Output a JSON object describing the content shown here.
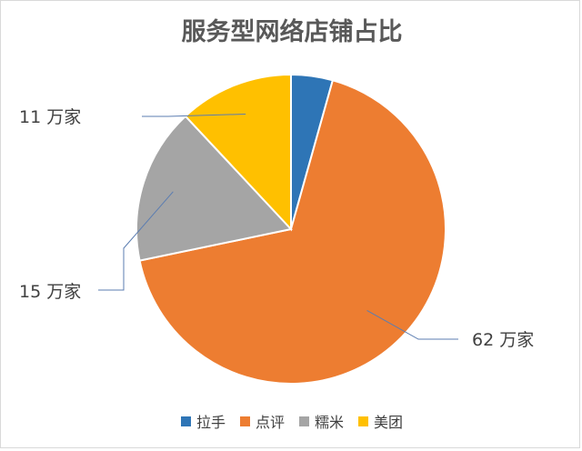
{
  "chart_data": {
    "type": "pie",
    "title": "服务型网络店铺占比",
    "categories": [
      "拉手",
      "点评",
      "糯米",
      "美团"
    ],
    "values": [
      4,
      62,
      15,
      11
    ],
    "value_labels": [
      "",
      "62 万家",
      "15 万家",
      "11 万家"
    ],
    "colors": [
      "#2e75b6",
      "#ed7d31",
      "#a5a5a5",
      "#ffc000"
    ],
    "legend_position": "bottom"
  }
}
